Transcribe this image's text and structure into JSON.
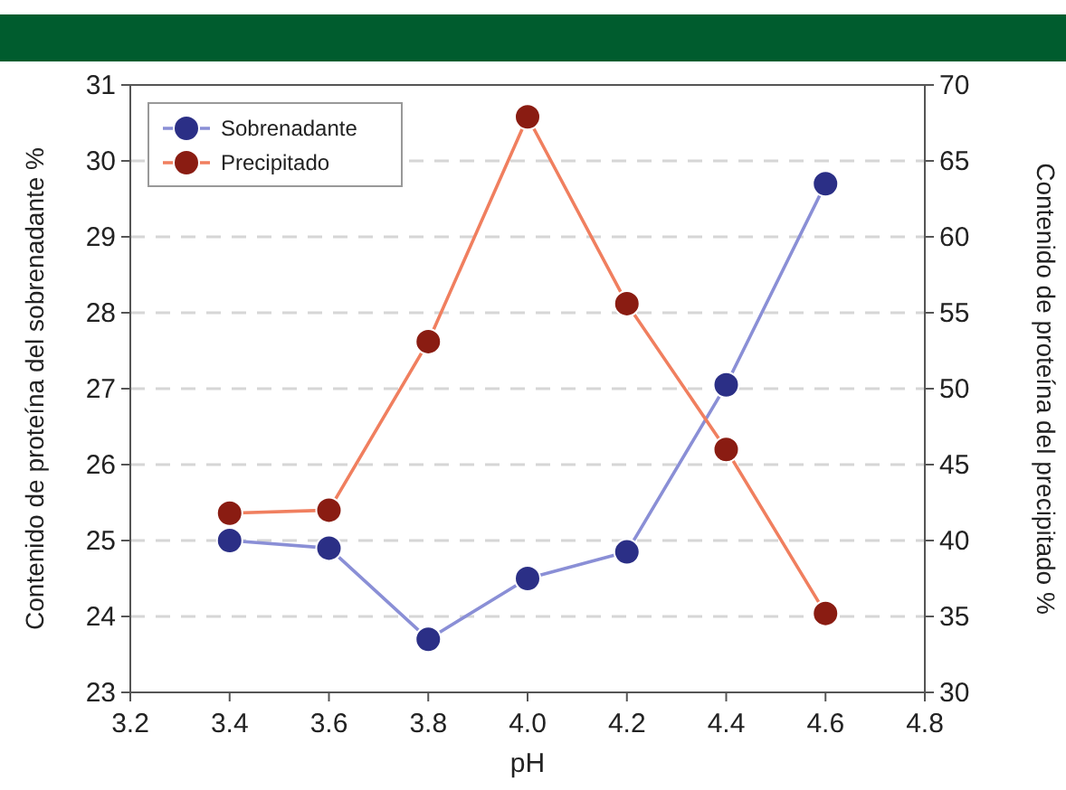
{
  "chart_data": {
    "type": "line",
    "xlabel": "pH",
    "ylabel": "Contenido de proteína del sobrenadante %",
    "y2label": "Contenido de proteína del precipitado %",
    "x": [
      3.4,
      3.6,
      3.8,
      4.0,
      4.2,
      4.4,
      4.6
    ],
    "series": [
      {
        "name": "Sobrenadante",
        "color": "#8a8fd6",
        "values": [
          25.0,
          24.9,
          23.7,
          24.5,
          24.85,
          27.05,
          29.7
        ]
      },
      {
        "name": "Precipitado",
        "color": "#f07f5f",
        "axis": "y2",
        "values": [
          41.8,
          42.0,
          53.1,
          67.9,
          55.6,
          46.0,
          35.2
        ]
      }
    ],
    "xlim": [
      3.2,
      4.8
    ],
    "xticks": [
      {
        "value": 3.2,
        "label": "3.2"
      },
      {
        "value": 3.4,
        "label": "3.4"
      },
      {
        "value": 3.6,
        "label": "3.6"
      },
      {
        "value": 3.8,
        "label": "3.8"
      },
      {
        "value": 4.0,
        "label": "4.0"
      },
      {
        "value": 4.2,
        "label": "4.2"
      },
      {
        "value": 4.4,
        "label": "4.4"
      },
      {
        "value": 4.6,
        "label": "4.6"
      },
      {
        "value": 4.8,
        "label": "4.8"
      }
    ],
    "ylim": [
      23,
      31
    ],
    "yticks": [
      23,
      24,
      25,
      26,
      27,
      28,
      29,
      30,
      31
    ],
    "y2lim": [
      30,
      70
    ],
    "y2ticks": [
      30,
      35,
      40,
      45,
      50,
      55,
      60,
      65,
      70
    ],
    "grid": "y",
    "legend": "top left",
    "marker": "circle",
    "line_style": "solid"
  }
}
